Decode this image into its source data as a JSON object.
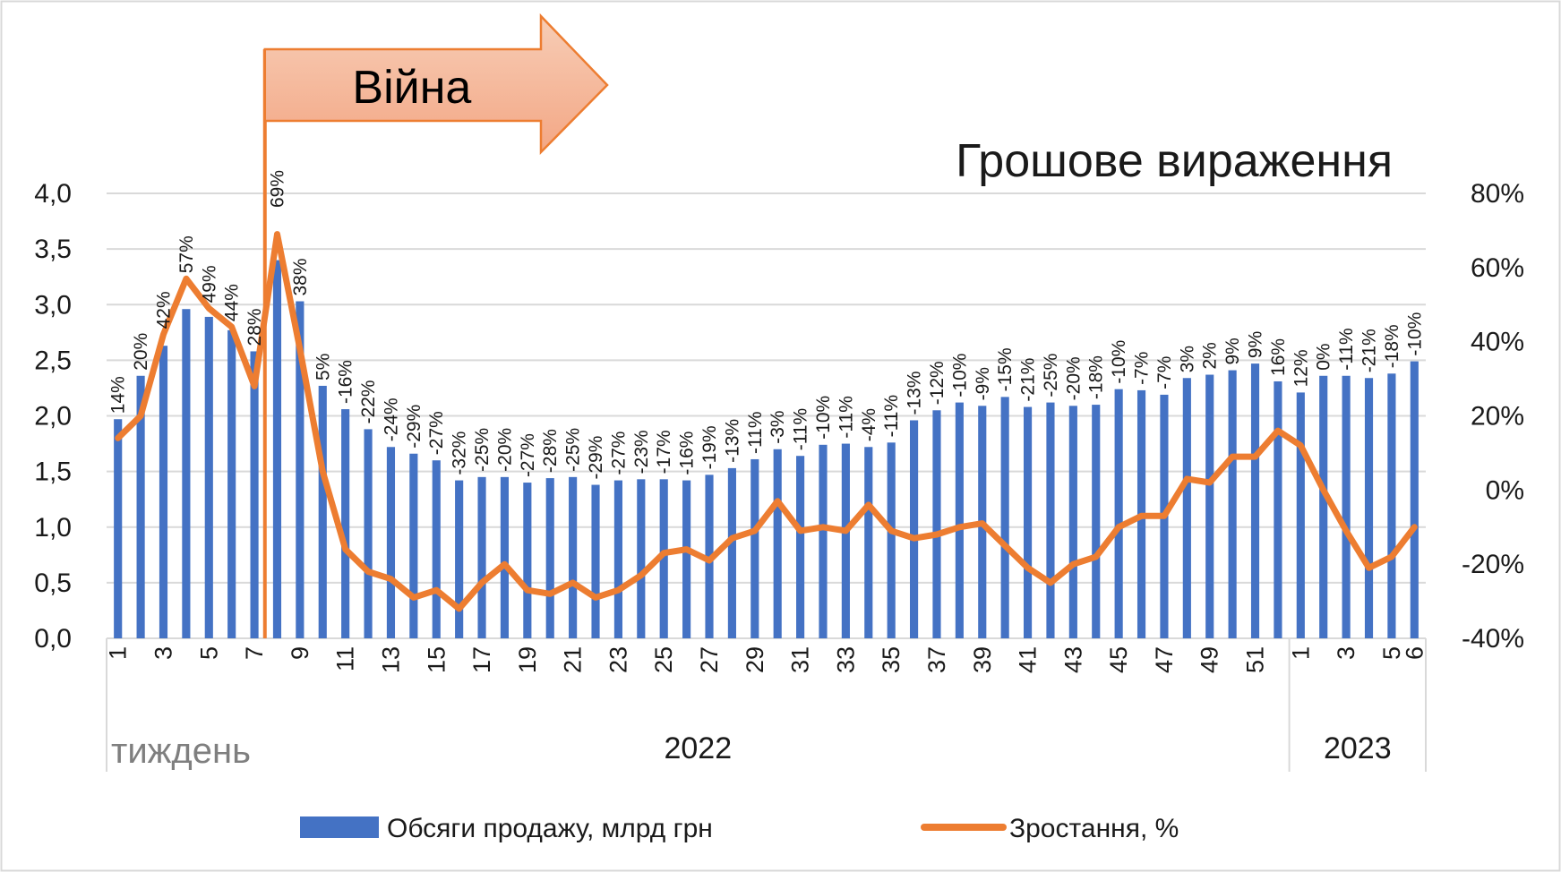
{
  "chart_data": {
    "type": "bar+line",
    "title": "Грошове вираження",
    "annotation": "Війна",
    "xlabel": "тиждень",
    "years": [
      {
        "label": "2022",
        "start": 0,
        "end": 51
      },
      {
        "label": "2023",
        "start": 52,
        "end": 57
      }
    ],
    "x": [
      1,
      2,
      3,
      4,
      5,
      6,
      7,
      8,
      9,
      10,
      11,
      12,
      13,
      14,
      15,
      16,
      17,
      18,
      19,
      20,
      21,
      22,
      23,
      24,
      25,
      26,
      27,
      28,
      29,
      30,
      31,
      32,
      33,
      34,
      35,
      36,
      37,
      38,
      39,
      40,
      41,
      42,
      43,
      44,
      45,
      46,
      47,
      48,
      49,
      50,
      51,
      52,
      1,
      2,
      3,
      4,
      5,
      6
    ],
    "x_ticks_shown": [
      "1",
      "3",
      "5",
      "7",
      "9",
      "11",
      "13",
      "15",
      "17",
      "19",
      "21",
      "23",
      "25",
      "27",
      "29",
      "31",
      "33",
      "35",
      "37",
      "39",
      "41",
      "43",
      "45",
      "47",
      "49",
      "51",
      "1",
      "3",
      "5",
      "6"
    ],
    "y_left": {
      "ticks": [
        "0,0",
        "0,5",
        "1,0",
        "1,5",
        "2,0",
        "2,5",
        "3,0",
        "3,5",
        "4,0"
      ],
      "min": 0,
      "max": 4.0
    },
    "y_right": {
      "ticks": [
        "-40%",
        "-20%",
        "0%",
        "20%",
        "40%",
        "60%",
        "80%"
      ],
      "min": -40,
      "max": 80
    },
    "series": [
      {
        "name": "Обсяги продажу, млрд грн",
        "type": "bar",
        "color": "#4472C4",
        "values": [
          1.97,
          2.36,
          2.63,
          2.96,
          2.89,
          2.77,
          2.58,
          3.4,
          3.03,
          2.27,
          2.06,
          1.88,
          1.72,
          1.66,
          1.6,
          1.42,
          1.45,
          1.45,
          1.4,
          1.44,
          1.45,
          1.38,
          1.42,
          1.43,
          1.43,
          1.42,
          1.47,
          1.53,
          1.61,
          1.7,
          1.64,
          1.74,
          1.75,
          1.72,
          1.76,
          1.96,
          2.05,
          2.12,
          2.09,
          2.17,
          2.08,
          2.12,
          2.09,
          2.1,
          2.24,
          2.23,
          2.19,
          2.34,
          2.37,
          2.41,
          2.47,
          2.31,
          2.21,
          2.36,
          2.36,
          2.34,
          2.38,
          2.49
        ]
      },
      {
        "name": "Зростання, %",
        "type": "line",
        "color": "#ED7D31",
        "values": [
          14,
          20,
          42,
          57,
          49,
          44,
          28,
          69,
          38,
          5,
          -16,
          -22,
          -24,
          -29,
          -27,
          -32,
          -25,
          -20,
          -27,
          -28,
          -25,
          -29,
          -27,
          -23,
          -17,
          -16,
          -19,
          -13,
          -11,
          -3,
          -11,
          -10,
          -11,
          -4,
          -11,
          -13,
          -12,
          -10,
          -9,
          -15,
          -21,
          -25,
          -20,
          -18,
          -10,
          -7,
          -7,
          3,
          2,
          9,
          9,
          16,
          12,
          0,
          -11,
          -21,
          -18,
          -10
        ],
        "labels": [
          "14%",
          "20%",
          "42%",
          "57%",
          "49%",
          "44%",
          "28%",
          "69%",
          "38%",
          "5%",
          "-16%",
          "-22%",
          "-24%",
          "-29%",
          "-27%",
          "-32%",
          "-25%",
          "-20%",
          "-27%",
          "-28%",
          "-25%",
          "-29%",
          "-27%",
          "-23%",
          "-17%",
          "-16%",
          "-19%",
          "-13%",
          "-11%",
          "-3%",
          "-11%",
          "-10%",
          "-11%",
          "-4%",
          "-11%",
          "-13%",
          "-12%",
          "-10%",
          "-9%",
          "-15%",
          "-21%",
          "-25%",
          "-20%",
          "-18%",
          "-10%",
          "-7%",
          "-7%",
          "3%",
          "2%",
          "9%",
          "9%",
          "16%",
          "12%",
          "0%",
          "-11%",
          "-21%",
          "-18%",
          "-10%"
        ]
      }
    ],
    "war_marker_after_index": 6,
    "grid": true,
    "legend_position": "bottom"
  }
}
